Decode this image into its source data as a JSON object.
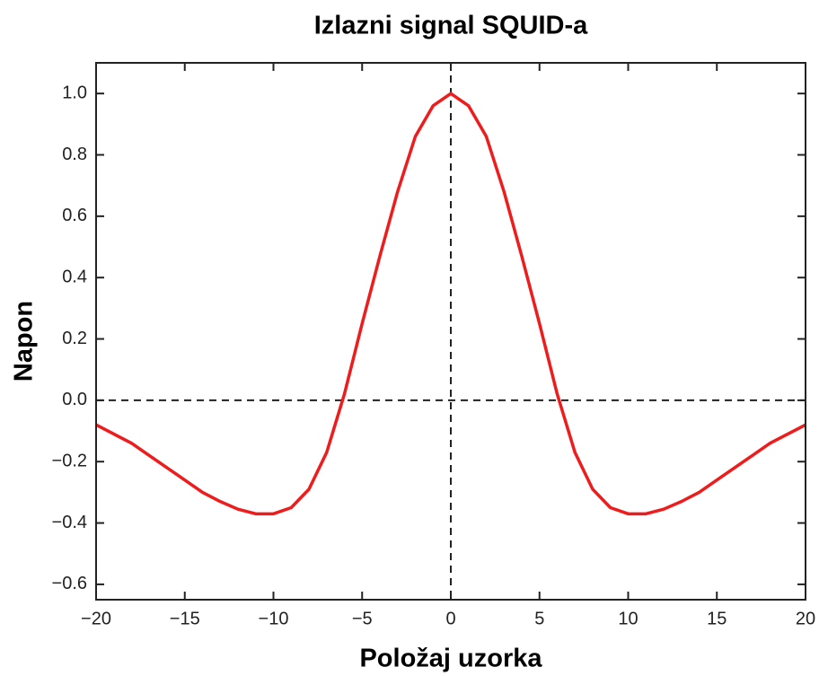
{
  "chart_data": {
    "type": "line",
    "title": "Izlazni signal SQUID-a",
    "xlabel": "Položaj uzorka",
    "ylabel": "Napon",
    "x": [
      -20,
      -19,
      -18,
      -17,
      -16,
      -15,
      -14,
      -13,
      -12,
      -11,
      -10,
      -9,
      -8,
      -7,
      -6,
      -5,
      -4,
      -3,
      -2,
      -1,
      0,
      1,
      2,
      3,
      4,
      5,
      6,
      7,
      8,
      9,
      10,
      11,
      12,
      13,
      14,
      15,
      16,
      17,
      18,
      19,
      20
    ],
    "series": [
      {
        "name": "Napon",
        "color": "#ee1c1c",
        "values": [
          -0.08,
          -0.11,
          -0.14,
          -0.18,
          -0.22,
          -0.26,
          -0.3,
          -0.33,
          -0.355,
          -0.37,
          -0.37,
          -0.35,
          -0.29,
          -0.17,
          0.02,
          0.25,
          0.47,
          0.68,
          0.86,
          0.96,
          1.0,
          0.96,
          0.86,
          0.68,
          0.47,
          0.25,
          0.02,
          -0.17,
          -0.29,
          -0.35,
          -0.37,
          -0.37,
          -0.355,
          -0.33,
          -0.3,
          -0.26,
          -0.22,
          -0.18,
          -0.14,
          -0.11,
          -0.08
        ]
      }
    ],
    "xlim": [
      -20,
      20
    ],
    "xticks": [
      {
        "value": -20,
        "label": "−20"
      },
      {
        "value": -15,
        "label": "−15"
      },
      {
        "value": -10,
        "label": "−10"
      },
      {
        "value": -5,
        "label": "−5"
      },
      0,
      5,
      10,
      15,
      20
    ],
    "ylim": [
      -0.65,
      1.1
    ],
    "yticks": [
      {
        "value": -0.6,
        "label": "−0.6"
      },
      {
        "value": -0.4,
        "label": "−0.4"
      },
      {
        "value": -0.2,
        "label": "−0.2"
      },
      {
        "value": 0,
        "label": "0.0"
      },
      0.2,
      0.4,
      0.6,
      0.8,
      {
        "value": 1,
        "label": "1.0"
      }
    ],
    "hlines": [
      0
    ],
    "vlines": [
      0
    ],
    "grid": false
  }
}
